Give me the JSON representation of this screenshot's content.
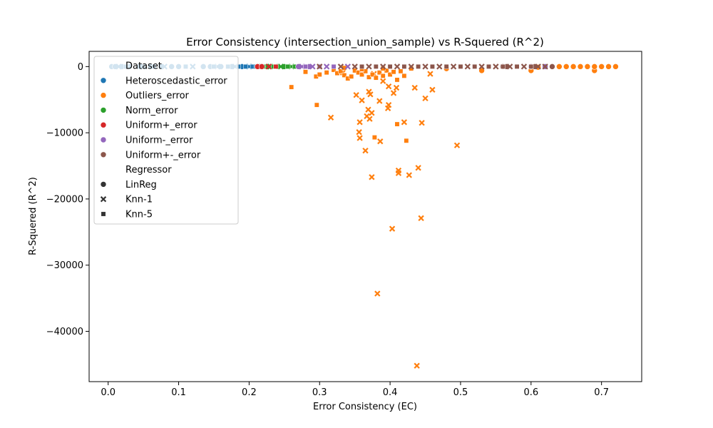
{
  "chart_data": {
    "type": "scatter",
    "title": "Error Consistency (intersection_union_sample) vs R-Squered (R^2)",
    "xlabel": "Error Consistency (EC)",
    "ylabel": "R-Squered (R^2)",
    "xlim": [
      -0.027,
      0.757
    ],
    "ylim": [
      -47600,
      2300
    ],
    "xticks": [
      0.0,
      0.1,
      0.2,
      0.3,
      0.4,
      0.5,
      0.6,
      0.7
    ],
    "xtick_labels": [
      "0.0",
      "0.1",
      "0.2",
      "0.3",
      "0.4",
      "0.5",
      "0.6",
      "0.7"
    ],
    "yticks": [
      0,
      -10000,
      -20000,
      -30000,
      -40000
    ],
    "ytick_labels": [
      "0",
      "−10000",
      "−20000",
      "−30000",
      "−40000"
    ],
    "grid": false,
    "legend": {
      "placement": "top-left",
      "hue_title": "Dataset",
      "style_title": "Regressor",
      "hue_entries": [
        {
          "name": "Heteroscedastic_error",
          "color": "#1f77b4"
        },
        {
          "name": "Outliers_error",
          "color": "#ff7f0e"
        },
        {
          "name": "Norm_error",
          "color": "#2ca02c"
        },
        {
          "name": "Uniform+_error",
          "color": "#d62728"
        },
        {
          "name": "Uniform-_error",
          "color": "#9467bd"
        },
        {
          "name": "Uniform+-_error",
          "color": "#8c564b"
        }
      ],
      "style_entries": [
        {
          "name": "LinReg",
          "marker": "circle"
        },
        {
          "name": "Knn-1",
          "marker": "x"
        },
        {
          "name": "Knn-5",
          "marker": "square"
        }
      ]
    },
    "series": [
      {
        "name": "Heteroscedastic_error",
        "color": "#1f77b4",
        "marker": "circle",
        "points": [
          [
            0.005,
            0
          ],
          [
            0.01,
            0
          ],
          [
            0.02,
            0
          ],
          [
            0.03,
            0
          ],
          [
            0.045,
            0
          ],
          [
            0.06,
            0
          ],
          [
            0.075,
            0
          ],
          [
            0.09,
            0
          ],
          [
            0.1,
            0
          ],
          [
            0.135,
            0
          ],
          [
            0.145,
            0
          ],
          [
            0.16,
            0
          ],
          [
            0.175,
            0
          ],
          [
            0.19,
            0
          ]
        ]
      },
      {
        "name": "Heteroscedastic_error",
        "color": "#1f77b4",
        "marker": "x",
        "points": [
          [
            0.015,
            0
          ],
          [
            0.05,
            0
          ],
          [
            0.08,
            0
          ],
          [
            0.12,
            0
          ],
          [
            0.155,
            0
          ],
          [
            0.18,
            0
          ],
          [
            0.2,
            0
          ]
        ]
      },
      {
        "name": "Heteroscedastic_error",
        "color": "#1f77b4",
        "marker": "square",
        "points": [
          [
            0.025,
            0
          ],
          [
            0.065,
            0
          ],
          [
            0.11,
            0
          ],
          [
            0.15,
            0
          ],
          [
            0.17,
            0
          ],
          [
            0.185,
            0
          ],
          [
            0.195,
            0
          ],
          [
            0.205,
            0
          ],
          [
            0.21,
            0
          ]
        ]
      },
      {
        "name": "Outliers_error",
        "color": "#ff7f0e",
        "marker": "circle",
        "points": [
          [
            0.48,
            -300
          ],
          [
            0.53,
            -600
          ],
          [
            0.6,
            -600
          ],
          [
            0.61,
            -100
          ],
          [
            0.63,
            0
          ],
          [
            0.64,
            0
          ],
          [
            0.65,
            0
          ],
          [
            0.66,
            0
          ],
          [
            0.67,
            0
          ],
          [
            0.68,
            0
          ],
          [
            0.69,
            -600
          ],
          [
            0.69,
            0
          ],
          [
            0.7,
            0
          ],
          [
            0.71,
            0
          ],
          [
            0.72,
            0
          ]
        ]
      },
      {
        "name": "Outliers_error",
        "color": "#ff7f0e",
        "marker": "x",
        "points": [
          [
            0.316,
            -7700
          ],
          [
            0.333,
            -900
          ],
          [
            0.352,
            -4300
          ],
          [
            0.356,
            -9900
          ],
          [
            0.357,
            -8400
          ],
          [
            0.357,
            -10800
          ],
          [
            0.36,
            -5100
          ],
          [
            0.365,
            -12700
          ],
          [
            0.367,
            -7500
          ],
          [
            0.369,
            -6500
          ],
          [
            0.37,
            -3800
          ],
          [
            0.371,
            -7900
          ],
          [
            0.372,
            -4200
          ],
          [
            0.374,
            -16700
          ],
          [
            0.374,
            -7000
          ],
          [
            0.377,
            -1100
          ],
          [
            0.382,
            -34300
          ],
          [
            0.385,
            -5200
          ],
          [
            0.386,
            -11300
          ],
          [
            0.39,
            -2200
          ],
          [
            0.397,
            -6300
          ],
          [
            0.398,
            -5800
          ],
          [
            0.398,
            -3000
          ],
          [
            0.403,
            -24500
          ],
          [
            0.405,
            -4000
          ],
          [
            0.409,
            -3200
          ],
          [
            0.412,
            -15700
          ],
          [
            0.412,
            -16100
          ],
          [
            0.42,
            -8400
          ],
          [
            0.427,
            -16400
          ],
          [
            0.435,
            -3200
          ],
          [
            0.438,
            -45200
          ],
          [
            0.44,
            -15300
          ],
          [
            0.444,
            -22900
          ],
          [
            0.445,
            -8500
          ],
          [
            0.45,
            -4800
          ],
          [
            0.457,
            -1100
          ],
          [
            0.46,
            -3500
          ],
          [
            0.495,
            -11900
          ]
        ]
      },
      {
        "name": "Outliers_error",
        "color": "#ff7f0e",
        "marker": "square",
        "points": [
          [
            0.26,
            -3100
          ],
          [
            0.28,
            -800
          ],
          [
            0.295,
            -1500
          ],
          [
            0.296,
            -5800
          ],
          [
            0.3,
            -1200
          ],
          [
            0.31,
            -900
          ],
          [
            0.32,
            -500
          ],
          [
            0.325,
            -1000
          ],
          [
            0.33,
            -700
          ],
          [
            0.335,
            -1300
          ],
          [
            0.34,
            -1800
          ],
          [
            0.345,
            -1500
          ],
          [
            0.35,
            -600
          ],
          [
            0.355,
            -900
          ],
          [
            0.36,
            -1200
          ],
          [
            0.365,
            -700
          ],
          [
            0.37,
            -1600
          ],
          [
            0.375,
            -1200
          ],
          [
            0.378,
            -10700
          ],
          [
            0.38,
            -1700
          ],
          [
            0.385,
            -900
          ],
          [
            0.39,
            -1400
          ],
          [
            0.395,
            -600
          ],
          [
            0.4,
            -1200
          ],
          [
            0.405,
            -800
          ],
          [
            0.41,
            -2000
          ],
          [
            0.41,
            -8700
          ],
          [
            0.415,
            -700
          ],
          [
            0.42,
            -1400
          ],
          [
            0.423,
            -11200
          ],
          [
            0.43,
            -300
          ],
          [
            0.335,
            -200
          ],
          [
            0.36,
            -400
          ],
          [
            0.39,
            -300
          ]
        ]
      },
      {
        "name": "Norm_error",
        "color": "#2ca02c",
        "marker": "circle",
        "points": [
          [
            0.215,
            0
          ],
          [
            0.225,
            0
          ],
          [
            0.24,
            0
          ],
          [
            0.25,
            0
          ]
        ]
      },
      {
        "name": "Norm_error",
        "color": "#2ca02c",
        "marker": "x",
        "points": [
          [
            0.23,
            0
          ],
          [
            0.245,
            0
          ],
          [
            0.26,
            0
          ]
        ]
      },
      {
        "name": "Norm_error",
        "color": "#2ca02c",
        "marker": "square",
        "points": [
          [
            0.22,
            0
          ],
          [
            0.235,
            0
          ],
          [
            0.255,
            0
          ],
          [
            0.265,
            0
          ]
        ]
      },
      {
        "name": "Uniform+_error",
        "color": "#d62728",
        "marker": "circle",
        "points": [
          [
            0.212,
            0
          ],
          [
            0.218,
            0
          ]
        ]
      },
      {
        "name": "Uniform+_error",
        "color": "#d62728",
        "marker": "x",
        "points": [
          [
            0.228,
            0
          ]
        ]
      },
      {
        "name": "Uniform+_error",
        "color": "#d62728",
        "marker": "square",
        "points": [
          [
            0.238,
            0
          ]
        ]
      },
      {
        "name": "Uniform-_error",
        "color": "#9467bd",
        "marker": "circle",
        "points": [
          [
            0.27,
            0
          ],
          [
            0.285,
            0
          ],
          [
            0.6,
            0
          ],
          [
            0.62,
            0
          ]
        ]
      },
      {
        "name": "Uniform-_error",
        "color": "#9467bd",
        "marker": "x",
        "points": [
          [
            0.275,
            0
          ],
          [
            0.29,
            0
          ],
          [
            0.31,
            0
          ],
          [
            0.34,
            0
          ]
        ]
      },
      {
        "name": "Uniform-_error",
        "color": "#9467bd",
        "marker": "square",
        "points": [
          [
            0.28,
            0
          ],
          [
            0.3,
            0
          ],
          [
            0.32,
            0
          ]
        ]
      },
      {
        "name": "Uniform+-_error",
        "color": "#8c564b",
        "marker": "circle",
        "points": [
          [
            0.56,
            0
          ],
          [
            0.565,
            0
          ],
          [
            0.605,
            0
          ],
          [
            0.63,
            0
          ]
        ]
      },
      {
        "name": "Uniform+-_error",
        "color": "#8c564b",
        "marker": "x",
        "points": [
          [
            0.3,
            0
          ],
          [
            0.33,
            0
          ],
          [
            0.35,
            0
          ],
          [
            0.37,
            0
          ],
          [
            0.39,
            0
          ],
          [
            0.41,
            0
          ],
          [
            0.43,
            0
          ],
          [
            0.45,
            0
          ],
          [
            0.47,
            0
          ],
          [
            0.49,
            0
          ],
          [
            0.51,
            0
          ],
          [
            0.53,
            0
          ],
          [
            0.55,
            0
          ],
          [
            0.57,
            0
          ],
          [
            0.59,
            0
          ],
          [
            0.61,
            0
          ],
          [
            0.62,
            0
          ]
        ]
      },
      {
        "name": "Uniform+-_error",
        "color": "#8c564b",
        "marker": "square",
        "points": [
          [
            0.36,
            0
          ],
          [
            0.38,
            0
          ],
          [
            0.4,
            0
          ],
          [
            0.42,
            0
          ],
          [
            0.44,
            0
          ],
          [
            0.46,
            0
          ],
          [
            0.48,
            0
          ],
          [
            0.5,
            0
          ],
          [
            0.52,
            0
          ],
          [
            0.54,
            0
          ],
          [
            0.56,
            0
          ],
          [
            0.58,
            0
          ],
          [
            0.6,
            0
          ]
        ]
      }
    ]
  }
}
